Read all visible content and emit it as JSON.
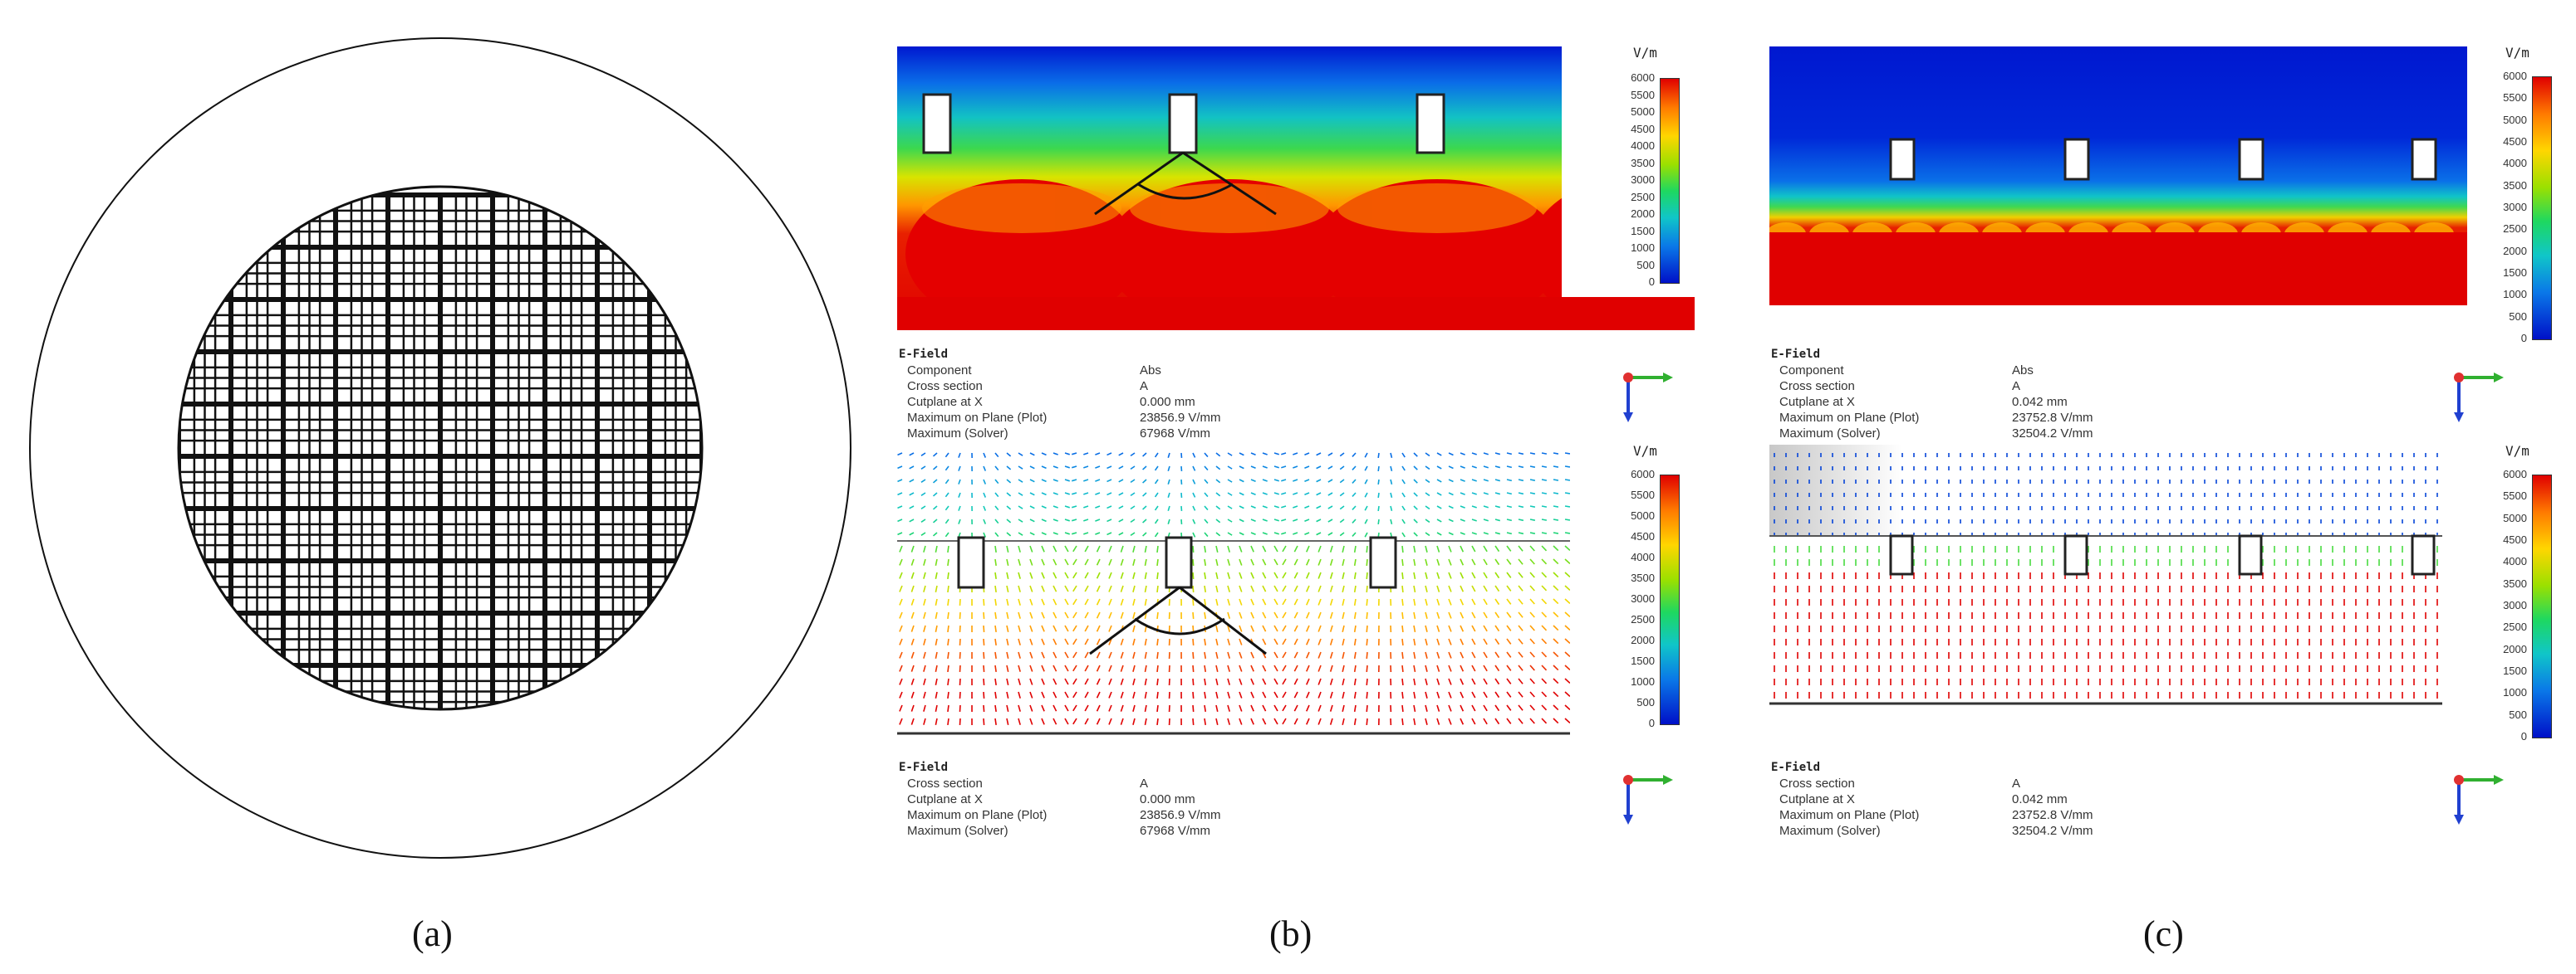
{
  "panels": {
    "a": {
      "label": "(a)"
    },
    "b": {
      "label": "(b)"
    },
    "c": {
      "label": "(c)"
    }
  },
  "legend": {
    "unit": "V/m",
    "ticks": [
      "6000",
      "5500",
      "5000",
      "4500",
      "4000",
      "3500",
      "3000",
      "2500",
      "2000",
      "1500",
      "1000",
      "500",
      "0"
    ]
  },
  "info_b_top": {
    "header": "E-Field",
    "rows": [
      {
        "key": "Component",
        "value": "Abs"
      },
      {
        "key": "Cross section",
        "value": "A"
      },
      {
        "key": "Cutplane at X",
        "value": "0.000 mm"
      },
      {
        "key": "Maximum on Plane (Plot)",
        "value": "23856.9 V/mm"
      },
      {
        "key": "Maximum (Solver)",
        "value": "67968 V/mm"
      }
    ]
  },
  "info_b_bottom": {
    "header": "E-Field",
    "rows": [
      {
        "key": "Cross section",
        "value": "A"
      },
      {
        "key": "Cutplane at X",
        "value": "0.000 mm"
      },
      {
        "key": "Maximum on Plane (Plot)",
        "value": "23856.9 V/mm"
      },
      {
        "key": "Maximum (Solver)",
        "value": "67968 V/mm"
      }
    ]
  },
  "info_c_top": {
    "header": "E-Field",
    "rows": [
      {
        "key": "Component",
        "value": "Abs"
      },
      {
        "key": "Cross section",
        "value": "A"
      },
      {
        "key": "Cutplane at X",
        "value": "0.042 mm"
      },
      {
        "key": "Maximum on Plane (Plot)",
        "value": "23752.8 V/mm"
      },
      {
        "key": "Maximum (Solver)",
        "value": "32504.2 V/mm"
      }
    ]
  },
  "info_c_bottom": {
    "header": "E-Field",
    "rows": [
      {
        "key": "Cross section",
        "value": "A"
      },
      {
        "key": "Cutplane at X",
        "value": "0.042 mm"
      },
      {
        "key": "Maximum on Plane (Plot)",
        "value": "23752.8 V/mm"
      },
      {
        "key": "Maximum (Solver)",
        "value": "32504.2 V/mm"
      }
    ]
  },
  "colors": {
    "red": "#e00000",
    "blue": "#0010c8",
    "outline": "#111111"
  }
}
